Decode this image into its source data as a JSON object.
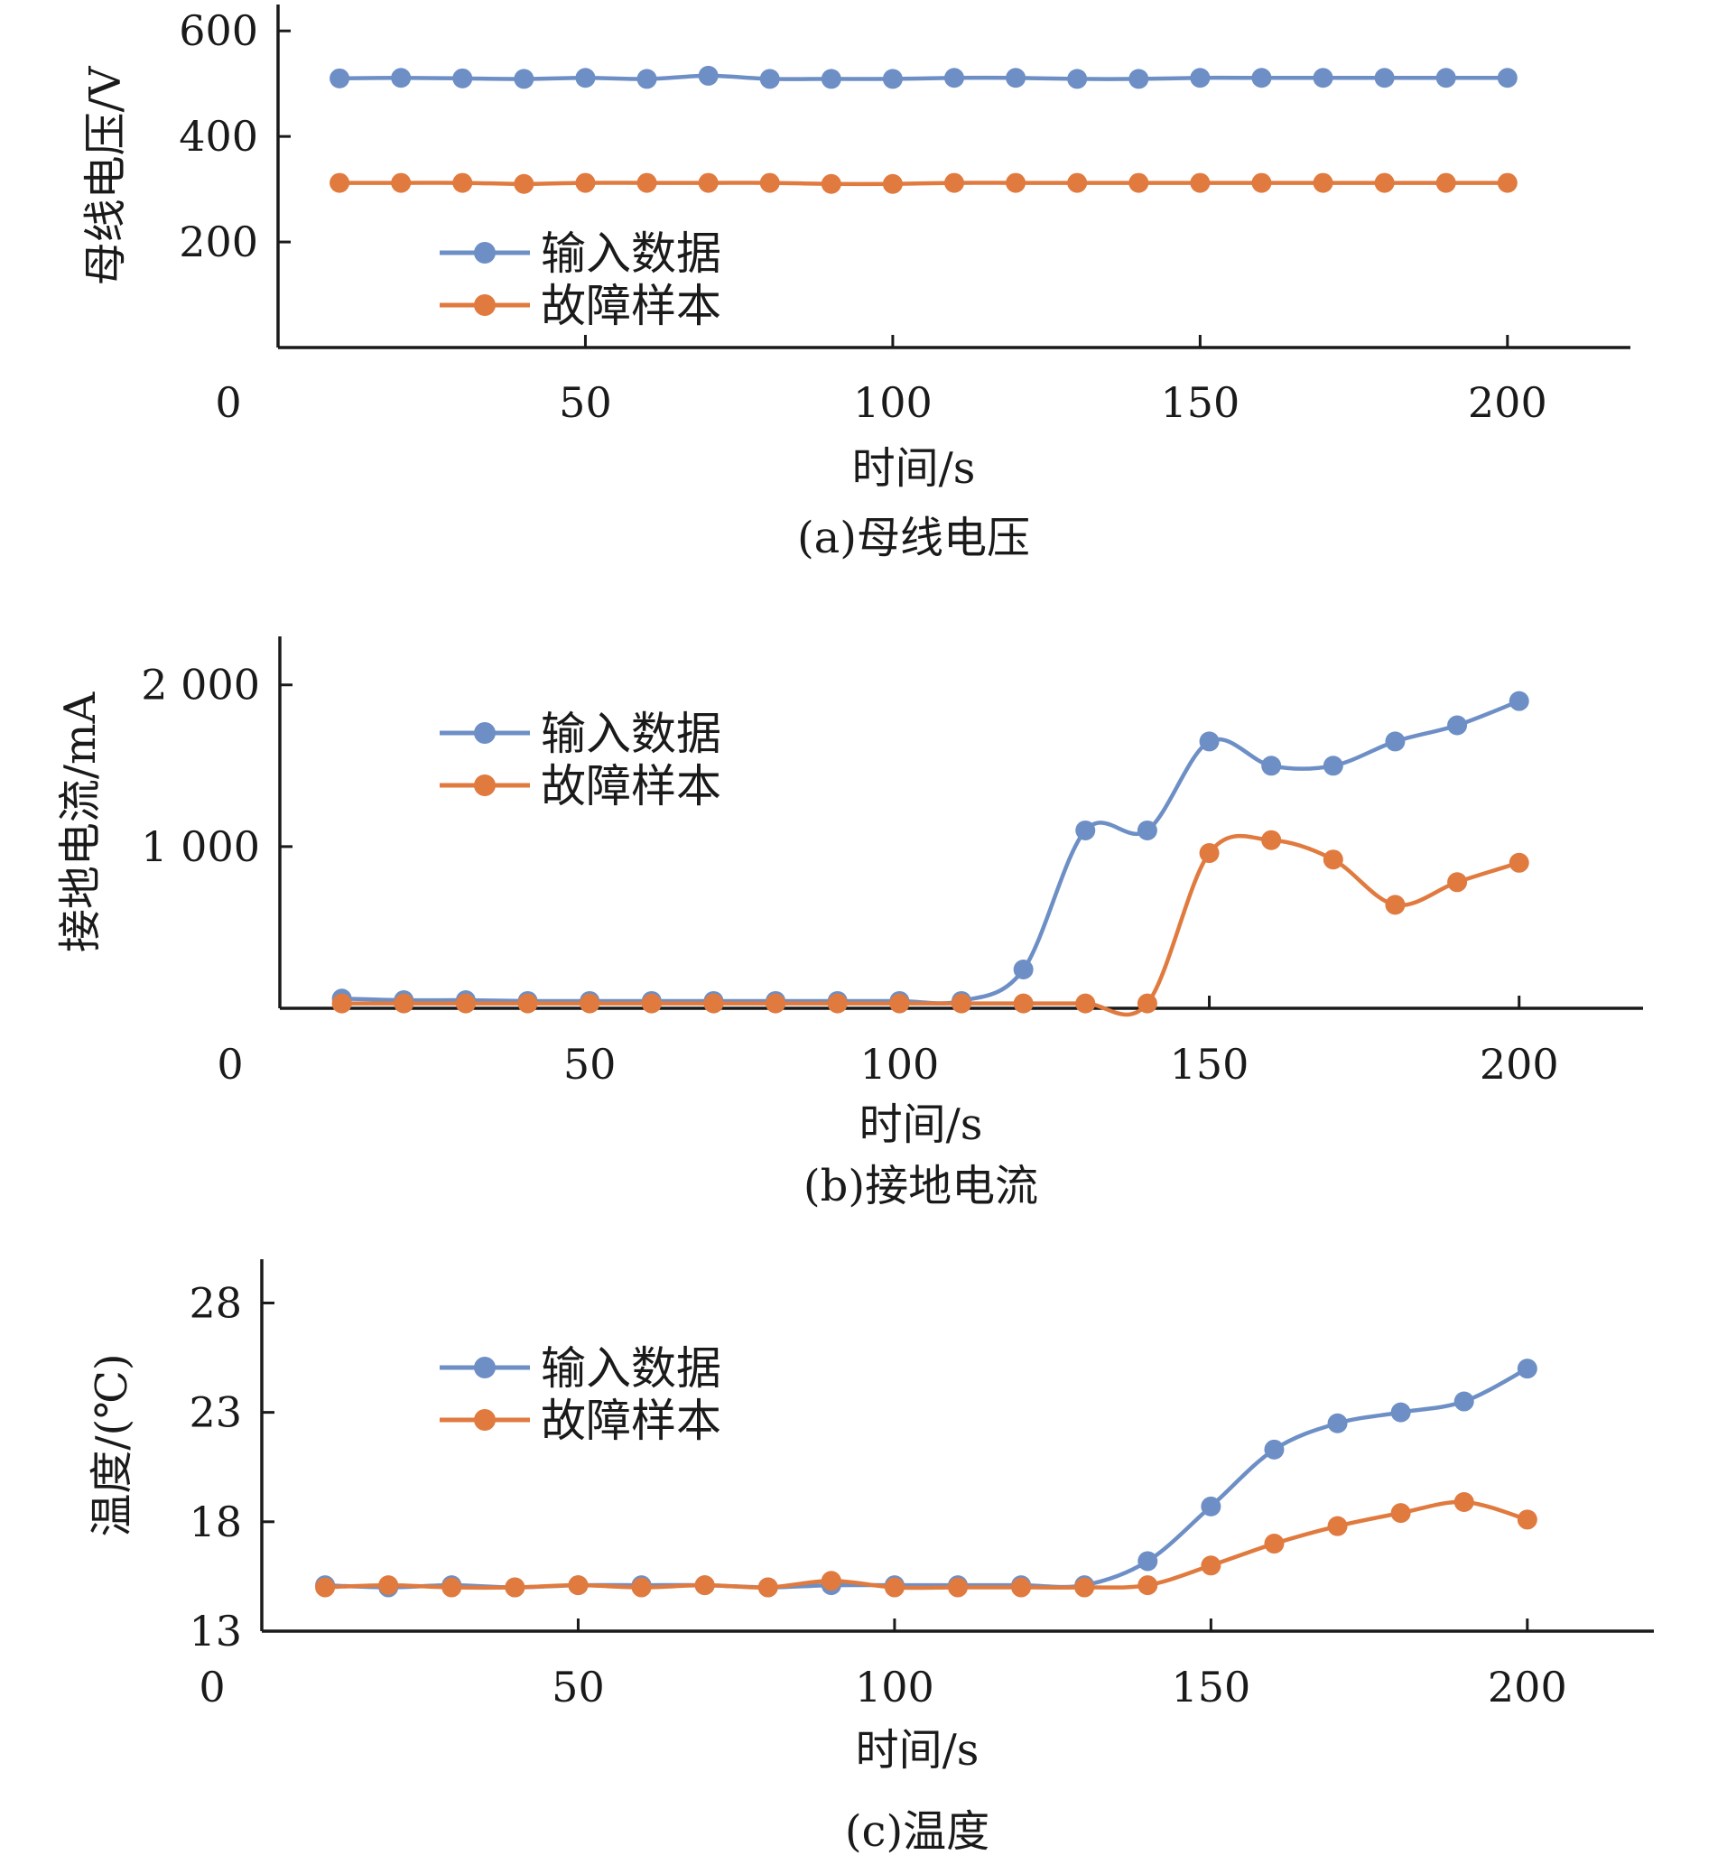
{
  "colors": {
    "input_series": "#6d8fc6",
    "fault_series": "#e07a3f",
    "axis": "#1a1a1a"
  },
  "chart_data": [
    {
      "type": "line",
      "caption": "(a)母线电压",
      "xlabel": "时间/s",
      "ylabel": "母线电压/V",
      "xlim": [
        0,
        220
      ],
      "ylim": [
        0,
        650
      ],
      "xticks": [
        0,
        50,
        100,
        150,
        200
      ],
      "xtick_labels": [
        "0",
        "50",
        "100",
        "150",
        "200"
      ],
      "yticks": [
        200,
        400,
        600
      ],
      "ytick_labels": [
        "200",
        "400",
        "600"
      ],
      "grid": false,
      "legend_position": "center-left",
      "x": [
        10,
        20,
        30,
        40,
        50,
        60,
        70,
        80,
        90,
        100,
        110,
        120,
        130,
        140,
        150,
        160,
        170,
        180,
        190,
        200
      ],
      "series": [
        {
          "name": "输入数据",
          "color_key": "input_series",
          "values": [
            510,
            511,
            510,
            509,
            511,
            509,
            515,
            509,
            509,
            509,
            511,
            511,
            509,
            509,
            511,
            511,
            511,
            511,
            511,
            511
          ]
        },
        {
          "name": "故障样本",
          "color_key": "fault_series",
          "values": [
            312,
            312,
            312,
            310,
            312,
            312,
            312,
            312,
            310,
            310,
            312,
            312,
            312,
            312,
            312,
            312,
            312,
            312,
            312,
            312
          ]
        }
      ]
    },
    {
      "type": "line",
      "caption": "(b)接地电流",
      "xlabel": "时间/s",
      "ylabel": "接地电流/mA",
      "xlim": [
        0,
        220
      ],
      "ylim": [
        0,
        2300
      ],
      "xticks": [
        0,
        50,
        100,
        150,
        200
      ],
      "xtick_labels": [
        "0",
        "50",
        "100",
        "150",
        "200"
      ],
      "yticks": [
        1000,
        2000
      ],
      "ytick_labels": [
        "1 000",
        "2 000"
      ],
      "grid": false,
      "legend_position": "top-left",
      "x": [
        10,
        20,
        30,
        40,
        50,
        60,
        70,
        80,
        90,
        100,
        110,
        120,
        130,
        140,
        150,
        160,
        170,
        180,
        190,
        200
      ],
      "series": [
        {
          "name": "输入数据",
          "color_key": "input_series",
          "values": [
            60,
            50,
            50,
            45,
            45,
            45,
            45,
            45,
            45,
            45,
            45,
            240,
            1100,
            1100,
            1650,
            1500,
            1500,
            1650,
            1750,
            1900
          ]
        },
        {
          "name": "故障样本",
          "color_key": "fault_series",
          "values": [
            30,
            30,
            30,
            30,
            30,
            30,
            30,
            30,
            30,
            30,
            30,
            30,
            30,
            30,
            960,
            1040,
            920,
            640,
            780,
            900
          ]
        }
      ]
    },
    {
      "type": "line",
      "caption": "(c)温度",
      "xlabel": "时间/s",
      "ylabel": "温度/(℃)",
      "xlim": [
        0,
        220
      ],
      "ylim": [
        13,
        30
      ],
      "xticks": [
        0,
        50,
        100,
        150,
        200
      ],
      "xtick_labels": [
        "0",
        "50",
        "100",
        "150",
        "200"
      ],
      "yticks": [
        13,
        18,
        23,
        28
      ],
      "ytick_labels": [
        "13",
        "18",
        "23",
        "28"
      ],
      "grid": false,
      "legend_position": "top-left",
      "x": [
        10,
        20,
        30,
        40,
        50,
        60,
        70,
        80,
        90,
        100,
        110,
        120,
        130,
        140,
        150,
        160,
        170,
        180,
        190,
        200
      ],
      "series": [
        {
          "name": "输入数据",
          "color_key": "input_series",
          "values": [
            15.1,
            15.0,
            15.1,
            15.0,
            15.1,
            15.1,
            15.1,
            15.0,
            15.1,
            15.1,
            15.1,
            15.1,
            15.1,
            16.2,
            18.7,
            21.3,
            22.5,
            23.0,
            23.5,
            25.0
          ]
        },
        {
          "name": "故障样本",
          "color_key": "fault_series",
          "values": [
            15.0,
            15.1,
            15.0,
            15.0,
            15.1,
            15.0,
            15.1,
            15.0,
            15.3,
            15.0,
            15.0,
            15.0,
            15.0,
            15.1,
            16.0,
            17.0,
            17.8,
            18.4,
            18.9,
            18.1
          ]
        }
      ]
    }
  ]
}
